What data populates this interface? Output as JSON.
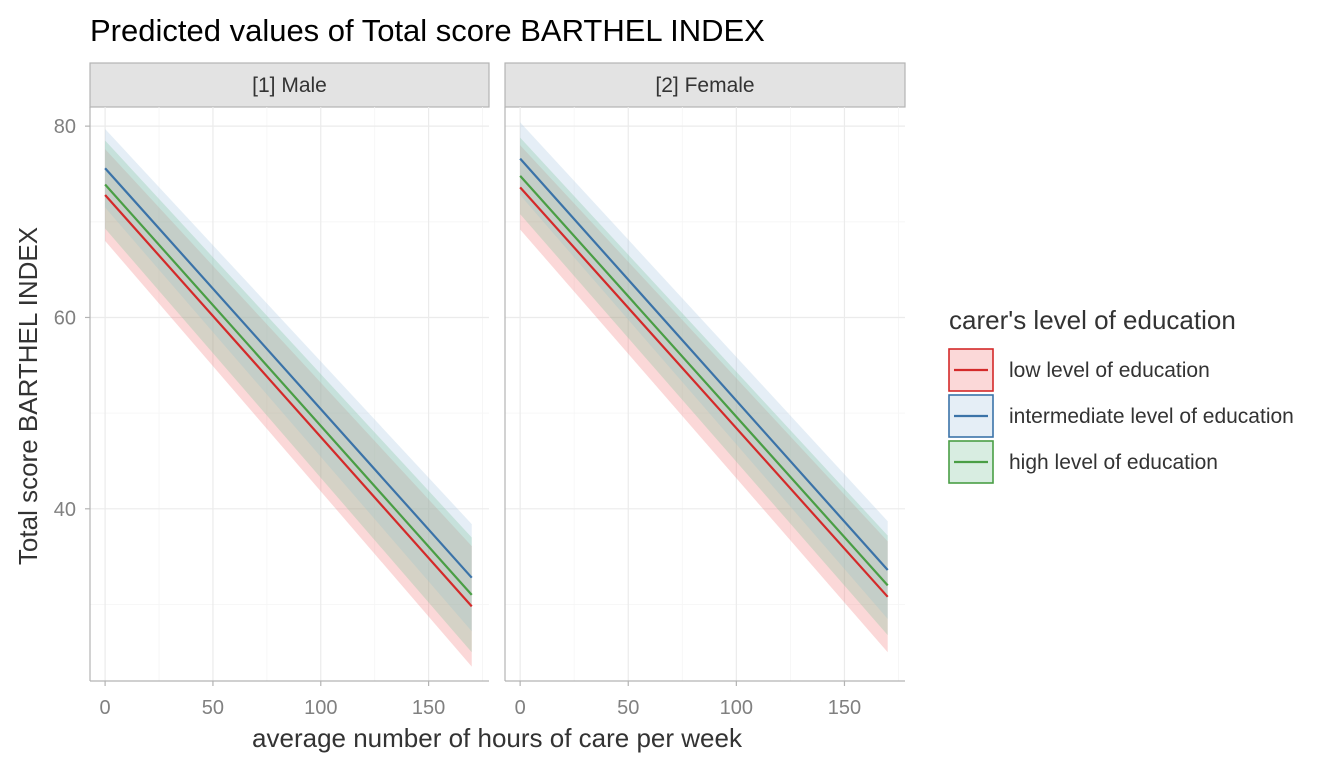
{
  "chart_data": {
    "type": "line",
    "title": "Predicted values of Total score BARTHEL INDEX",
    "xlabel": "average number of hours of care per week",
    "ylabel": "Total score BARTHEL INDEX",
    "xlim": [
      -7,
      178
    ],
    "ylim": [
      22,
      82
    ],
    "x_ticks": [
      0,
      50,
      100,
      150
    ],
    "y_ticks": [
      40,
      60,
      80
    ],
    "grid": true,
    "legend_position": "right",
    "legend_title": "carer's level of education",
    "series_styles": [
      {
        "name": "low level of education",
        "color": "#d42a2a",
        "fill": "#f27f7f"
      },
      {
        "name": "intermediate level of education",
        "color": "#3b73a8",
        "fill": "#a9c6e2"
      },
      {
        "name": "high level of education",
        "color": "#4a9e45",
        "fill": "#7fc49a"
      }
    ],
    "panels": [
      {
        "strip": "[1] Male",
        "x": [
          0,
          170
        ],
        "series": [
          {
            "name": "low level of education",
            "values": [
              72.8,
              29.8
            ],
            "lower": [
              68.0,
              23.5
            ],
            "upper": [
              77.6,
              36.1
            ]
          },
          {
            "name": "intermediate level of education",
            "values": [
              75.6,
              32.8
            ],
            "lower": [
              71.5,
              27.2
            ],
            "upper": [
              79.7,
              38.4
            ]
          },
          {
            "name": "high level of education",
            "values": [
              73.9,
              31.0
            ],
            "lower": [
              69.3,
              25.0
            ],
            "upper": [
              78.5,
              37.0
            ]
          }
        ]
      },
      {
        "strip": "[2] Female",
        "x": [
          0,
          170
        ],
        "series": [
          {
            "name": "low level of education",
            "values": [
              73.6,
              30.8
            ],
            "lower": [
              69.2,
              25.0
            ],
            "upper": [
              78.0,
              36.6
            ]
          },
          {
            "name": "intermediate level of education",
            "values": [
              76.6,
              33.6
            ],
            "lower": [
              72.8,
              28.5
            ],
            "upper": [
              80.4,
              38.7
            ]
          },
          {
            "name": "high level of education",
            "values": [
              74.8,
              32.0
            ],
            "lower": [
              70.8,
              26.8
            ],
            "upper": [
              78.8,
              37.2
            ]
          }
        ]
      }
    ]
  }
}
